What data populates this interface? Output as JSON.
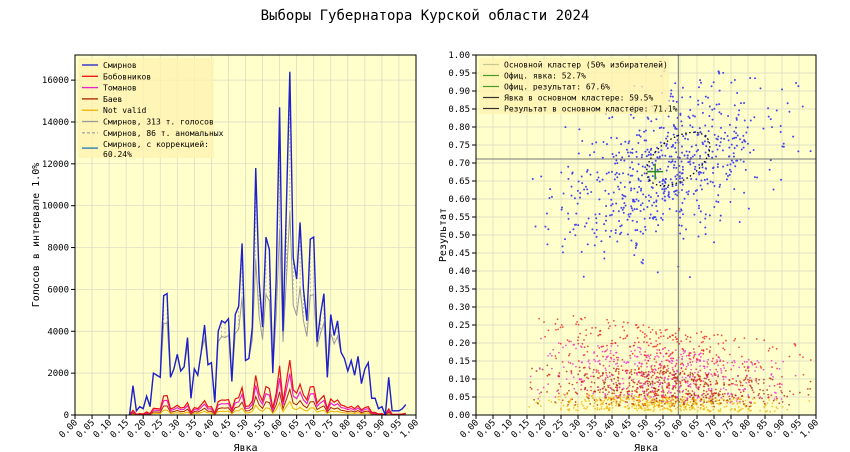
{
  "title": "Выборы Губернатора Курской области 2024",
  "colors": {
    "smirnov": "#1f1fcc",
    "bobovnikov": "#ee1111",
    "tomanov": "#ee22cc",
    "baev": "#aa2200",
    "notvalid": "#f0b000",
    "smirnov313": "#999999",
    "anom": "#aaaaaa",
    "corr": "#1f77b4",
    "bg": "#ffffcc",
    "grid": "#d8d8c0",
    "scatter_main": "#4444ee"
  },
  "chart_data": [
    {
      "type": "line",
      "xlabel": "Явка",
      "ylabel": "Голосов в интервале 1.0%",
      "xlim": [
        0,
        1.0
      ],
      "ylim": [
        0,
        17200
      ],
      "xticks": [
        "0.00",
        "0.05",
        "0.10",
        "0.15",
        "0.20",
        "0.25",
        "0.30",
        "0.35",
        "0.40",
        "0.45",
        "0.50",
        "0.55",
        "0.60",
        "0.65",
        "0.70",
        "0.75",
        "0.80",
        "0.85",
        "0.90",
        "0.95",
        "1.00"
      ],
      "yticks": [
        "0",
        "2000",
        "4000",
        "6000",
        "8000",
        "10000",
        "12000",
        "14000",
        "16000"
      ],
      "grid": true,
      "legend_position": "top-left",
      "legend": [
        "Смирнов",
        "Бобовников",
        "Томанов",
        "Баев",
        "Not valid",
        "Смирнов, 313 т. голосов",
        "Смирнов, 86 т. аномальных",
        "Смирнов, с коррекцией:\n 60.24%"
      ],
      "legend_lines": [
        "Смирнов, с коррекцией:",
        " 60.24%"
      ],
      "x_start": 0.16,
      "x_step": 0.01,
      "smirnov": [
        0,
        1400,
        200,
        400,
        300,
        900,
        400,
        2000,
        1900,
        1800,
        5700,
        5800,
        1800,
        2200,
        2900,
        2100,
        2300,
        3700,
        800,
        2200,
        1900,
        3000,
        4300,
        2400,
        2500,
        600,
        4000,
        4500,
        4400,
        4600,
        1600,
        4800,
        5200,
        8200,
        2600,
        2700,
        4200,
        11800,
        6400,
        4200,
        8500,
        7900,
        2000,
        6500,
        14700,
        4000,
        10000,
        16400,
        7500,
        6500,
        9200,
        6000,
        4500,
        8400,
        8500,
        3500,
        4800,
        5800,
        1800,
        4800,
        3800,
        4500,
        3000,
        2700,
        2100,
        2600,
        1900,
        2800,
        1500,
        2200,
        2500,
        800,
        800,
        300,
        400,
        0,
        1800,
        200,
        200,
        200,
        300,
        500
      ],
      "shares": {
        "bobovnikov": 0.16,
        "tomanov": 0.12,
        "baev": 0.075,
        "notvalid": 0.04
      }
    },
    {
      "type": "scatter",
      "xlabel": "Явка",
      "ylabel": "Результат",
      "xlim": [
        0,
        1.0
      ],
      "ylim": [
        0,
        1.0
      ],
      "xticks": [
        "0.00",
        "0.05",
        "0.10",
        "0.15",
        "0.20",
        "0.25",
        "0.30",
        "0.35",
        "0.40",
        "0.45",
        "0.50",
        "0.55",
        "0.60",
        "0.65",
        "0.70",
        "0.75",
        "0.80",
        "0.85",
        "0.90",
        "0.95",
        "1.00"
      ],
      "yticks": [
        "0.00",
        "0.05",
        "0.10",
        "0.15",
        "0.20",
        "0.25",
        "0.30",
        "0.35",
        "0.40",
        "0.45",
        "0.50",
        "0.55",
        "0.60",
        "0.65",
        "0.70",
        "0.75",
        "0.80",
        "0.85",
        "0.90",
        "0.95",
        "1.00"
      ],
      "grid": true,
      "legend_position": "top-left",
      "legend": [
        "Основной кластер (50% избирателей)",
        "Офиц. явка: 52.7%",
        "Офиц. результат: 67.6%",
        "Явка в основном кластере: 59.5%",
        "Результат в основном кластере: 71.1%"
      ],
      "official": {
        "turnout": 0.527,
        "result": 0.676
      },
      "cluster": {
        "turnout": 0.595,
        "result": 0.711,
        "rx": 0.2,
        "ry": 0.11,
        "angle_deg": 35
      },
      "main_points": {
        "count": 700,
        "x_mean": 0.56,
        "x_sd": 0.16,
        "y_mean": 0.68,
        "y_sd": 0.1
      },
      "low_points": {
        "count": 1800,
        "x_mean": 0.55,
        "x_sd": 0.17,
        "y_max": 0.3
      }
    }
  ]
}
